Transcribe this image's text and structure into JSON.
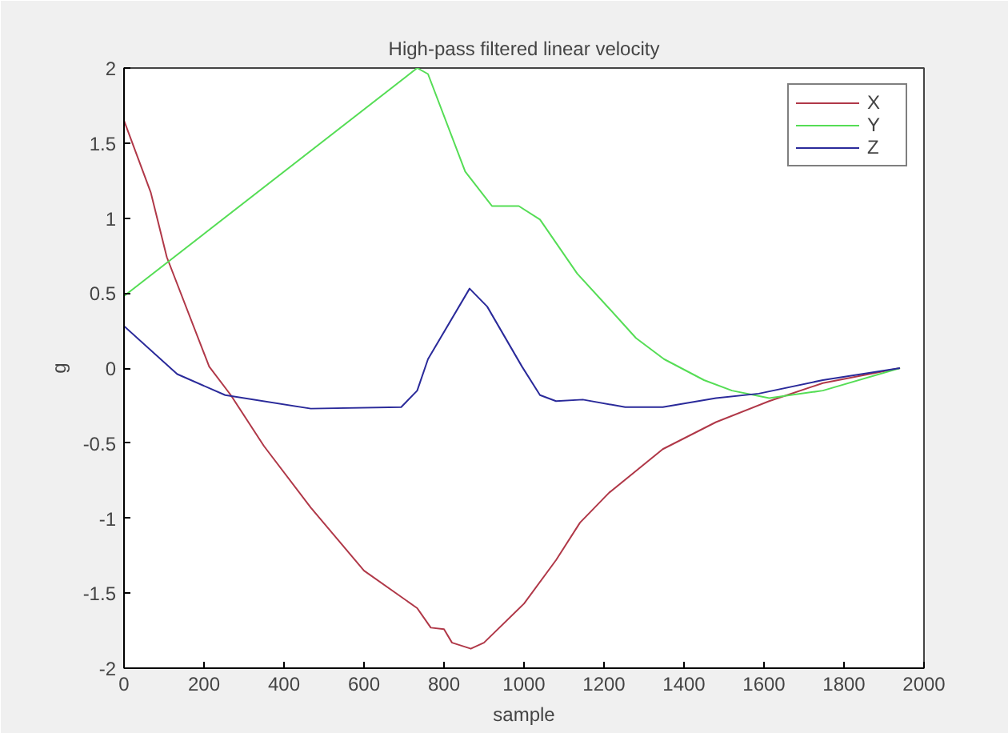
{
  "chart_data": {
    "type": "line",
    "title": "High-pass filtered linear velocity",
    "xlabel": "sample",
    "ylabel": "g",
    "xlim": [
      0,
      2000
    ],
    "ylim": [
      -2,
      2
    ],
    "xticks": [
      0,
      200,
      400,
      600,
      800,
      1000,
      1200,
      1400,
      1600,
      1800,
      2000
    ],
    "yticks": [
      -2,
      -1.5,
      -1,
      -0.5,
      0,
      0.5,
      1,
      1.5,
      2
    ],
    "grid": false,
    "legend": "top right",
    "marker": "none",
    "line_style": "solid",
    "series": [
      {
        "name": "X",
        "color": "#b03848",
        "x": [
          0,
          67,
          107,
          213,
          267,
          350,
          467,
          600,
          733,
          767,
          800,
          820,
          867,
          900,
          1000,
          1080,
          1140,
          1213,
          1347,
          1480,
          1613,
          1747,
          1940
        ],
        "values": [
          1.65,
          1.17,
          0.74,
          0.01,
          -0.18,
          -0.52,
          -0.93,
          -1.35,
          -1.6,
          -1.73,
          -1.74,
          -1.83,
          -1.87,
          -1.83,
          -1.57,
          -1.28,
          -1.03,
          -0.83,
          -0.54,
          -0.36,
          -0.22,
          -0.1,
          0
        ]
      },
      {
        "name": "Y",
        "color": "#55dd55",
        "x": [
          0,
          733,
          760,
          853,
          920,
          987,
          1040,
          1133,
          1212,
          1280,
          1350,
          1450,
          1520,
          1613,
          1747,
          1940
        ],
        "values": [
          0.48,
          2.0,
          1.96,
          1.31,
          1.08,
          1.08,
          0.99,
          0.63,
          0.4,
          0.2,
          0.06,
          -0.08,
          -0.15,
          -0.2,
          -0.15,
          0
        ]
      },
      {
        "name": "Z",
        "color": "#2a2a9a",
        "x": [
          0,
          133,
          253,
          467,
          693,
          733,
          760,
          864,
          908,
          995,
          1040,
          1080,
          1147,
          1253,
          1347,
          1480,
          1587,
          1747,
          1940
        ],
        "values": [
          0.28,
          -0.04,
          -0.18,
          -0.27,
          -0.26,
          -0.15,
          0.06,
          0.53,
          0.41,
          0.01,
          -0.18,
          -0.22,
          -0.21,
          -0.26,
          -0.26,
          -0.2,
          -0.17,
          -0.08,
          0
        ]
      }
    ]
  }
}
